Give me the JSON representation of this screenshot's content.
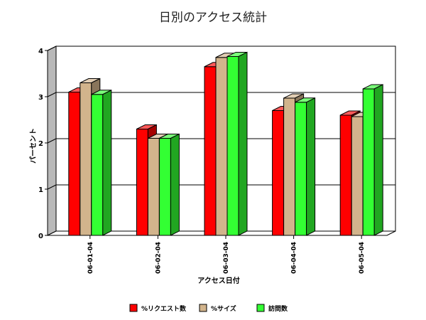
{
  "chart_data": {
    "type": "bar",
    "title": "日別のアクセス統計",
    "xlabel": "アクセス日付",
    "ylabel": "パーセント",
    "ylim": [
      0,
      4
    ],
    "yticks": [
      0,
      1,
      2,
      3,
      4
    ],
    "grid": true,
    "legend_position": "bottom",
    "categories": [
      "06-01-04",
      "06-02-04",
      "06-03-04",
      "06-04-04",
      "06-05-04"
    ],
    "series": [
      {
        "name": "%リクエスト数",
        "color": "#ff0000",
        "values": [
          3.1,
          2.3,
          3.65,
          2.7,
          2.6
        ]
      },
      {
        "name": "%サイズ",
        "color": "#d2b48c",
        "values": [
          3.3,
          2.1,
          3.85,
          2.97,
          2.57
        ]
      },
      {
        "name": "訪問数",
        "color": "#33ff33",
        "values": [
          3.05,
          2.1,
          3.87,
          2.88,
          3.17
        ]
      }
    ]
  }
}
